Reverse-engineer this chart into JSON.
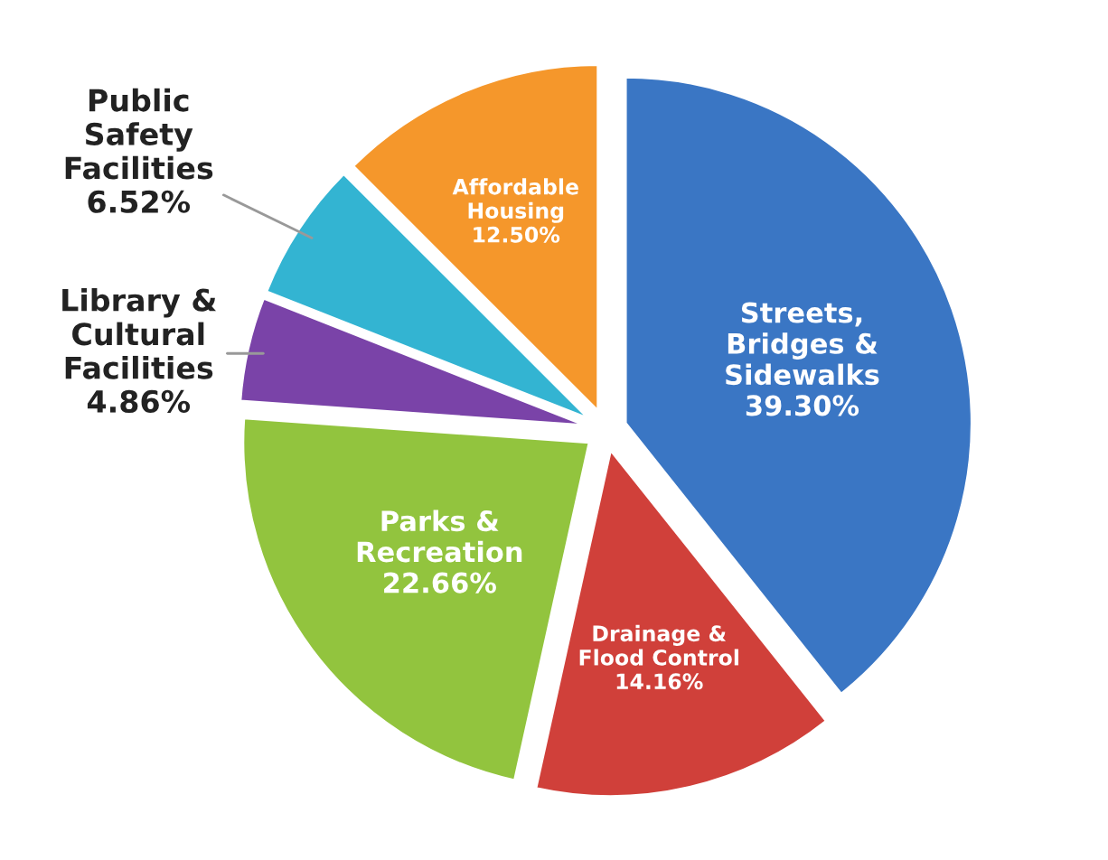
{
  "chart_data": {
    "type": "pie",
    "categories": [
      "Streets,\nBridges &\nSidewalks",
      "Drainage &\nFlood Control",
      "Parks &\nRecreation",
      "Library &\nCultural\nFacilities",
      "Public\nSafety\nFacilities",
      "Affordable\nHousing"
    ],
    "values": [
      39.3,
      14.16,
      22.66,
      4.86,
      6.52,
      12.5
    ],
    "value_labels": [
      "39.30%",
      "14.16%",
      "22.66%",
      "4.86%",
      "6.52%",
      "12.50%"
    ],
    "colors": [
      "#3a76c4",
      "#d0403a",
      "#92c43e",
      "#7a43a8",
      "#33b4d2",
      "#f5972b"
    ],
    "legend": false
  }
}
